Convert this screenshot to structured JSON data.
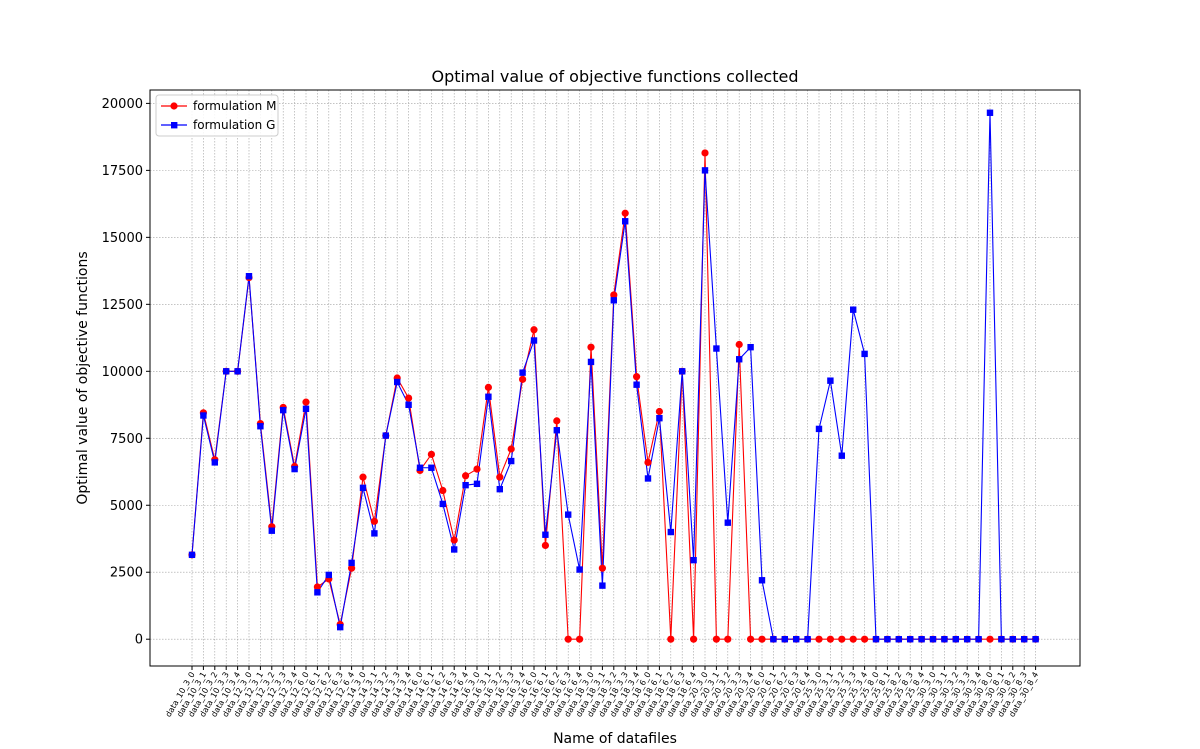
{
  "chart_data": {
    "type": "line",
    "title": "Optimal value of objective functions collected",
    "xlabel": "Name of datafiles",
    "ylabel": "Optimal value of objective functions",
    "ylim": [
      -1000,
      20500
    ],
    "yticks": [
      0,
      2500,
      5000,
      7500,
      10000,
      12500,
      15000,
      17500,
      20000
    ],
    "grid": true,
    "legend_position": "top-left",
    "categories": [
      "data_10_3_0",
      "data_10_3_1",
      "data_10_3_2",
      "data_10_3_3",
      "data_10_3_4",
      "data_12_3_0",
      "data_12_3_1",
      "data_12_3_2",
      "data_12_3_3",
      "data_12_3_4",
      "data_12_6_0",
      "data_12_6_1",
      "data_12_6_2",
      "data_12_6_3",
      "data_12_6_4",
      "data_14_3_0",
      "data_14_3_1",
      "data_14_3_2",
      "data_14_3_3",
      "data_14_3_4",
      "data_14_6_0",
      "data_14_6_1",
      "data_14_6_2",
      "data_14_6_3",
      "data_14_6_4",
      "data_16_3_0",
      "data_16_3_1",
      "data_16_3_2",
      "data_16_3_3",
      "data_16_3_4",
      "data_16_6_0",
      "data_16_6_1",
      "data_16_6_2",
      "data_16_6_3",
      "data_16_6_4",
      "data_18_3_0",
      "data_18_3_1",
      "data_18_3_2",
      "data_18_3_3",
      "data_18_3_4",
      "data_18_6_0",
      "data_18_6_1",
      "data_18_6_2",
      "data_18_6_3",
      "data_18_6_4",
      "data_20_3_0",
      "data_20_3_1",
      "data_20_3_2",
      "data_20_3_3",
      "data_20_3_4",
      "data_20_6_0",
      "data_20_6_1",
      "data_20_6_2",
      "data_20_6_3",
      "data_20_6_4",
      "data_25_3_0",
      "data_25_3_1",
      "data_25_3_2",
      "data_25_3_3",
      "data_25_3_4",
      "data_25_8_0",
      "data_25_8_1",
      "data_25_8_2",
      "data_25_8_3",
      "data_25_8_4",
      "data_30_3_0",
      "data_30_3_1",
      "data_30_3_2",
      "data_30_3_3",
      "data_30_3_4",
      "data_30_8_0",
      "data_30_8_1",
      "data_30_8_2",
      "data_30_8_3",
      "data_30_8_4"
    ],
    "series": [
      {
        "name": "formulation M",
        "color": "#ff0000",
        "marker": "circle",
        "values": [
          3150,
          8450,
          6700,
          10000,
          10000,
          13500,
          8050,
          4200,
          8650,
          6450,
          8850,
          1950,
          2250,
          550,
          2650,
          6050,
          4400,
          7600,
          9750,
          9000,
          6300,
          6900,
          5550,
          3700,
          6100,
          6350,
          9400,
          6050,
          7100,
          9700,
          11550,
          3500,
          8150,
          0,
          0,
          10900,
          2650,
          12850,
          15900,
          9800,
          6600,
          8500,
          0,
          10000,
          0,
          18150,
          0,
          0,
          11000,
          0,
          0,
          0,
          0,
          0,
          0,
          0,
          0,
          0,
          0,
          0,
          0,
          0,
          0,
          0,
          0,
          0,
          0,
          0,
          0,
          0,
          0,
          0,
          0,
          0,
          0
        ]
      },
      {
        "name": "formulation G",
        "color": "#0000ff",
        "marker": "square",
        "values": [
          3150,
          8350,
          6600,
          10000,
          10000,
          13550,
          7950,
          4050,
          8550,
          6350,
          8600,
          1750,
          2400,
          450,
          2850,
          5650,
          3950,
          7600,
          9600,
          8750,
          6400,
          6400,
          5050,
          3350,
          5750,
          5800,
          9050,
          5600,
          6650,
          9950,
          11150,
          3900,
          7800,
          4650,
          2600,
          10350,
          2000,
          12650,
          15600,
          9500,
          6000,
          8250,
          4000,
          10000,
          2950,
          17500,
          10850,
          4350,
          10450,
          10900,
          2200,
          0,
          0,
          0,
          0,
          7850,
          9650,
          6850,
          12300,
          10650,
          0,
          0,
          0,
          0,
          0,
          0,
          0,
          0,
          0,
          0,
          19650,
          0,
          0,
          0,
          0
        ]
      }
    ]
  }
}
